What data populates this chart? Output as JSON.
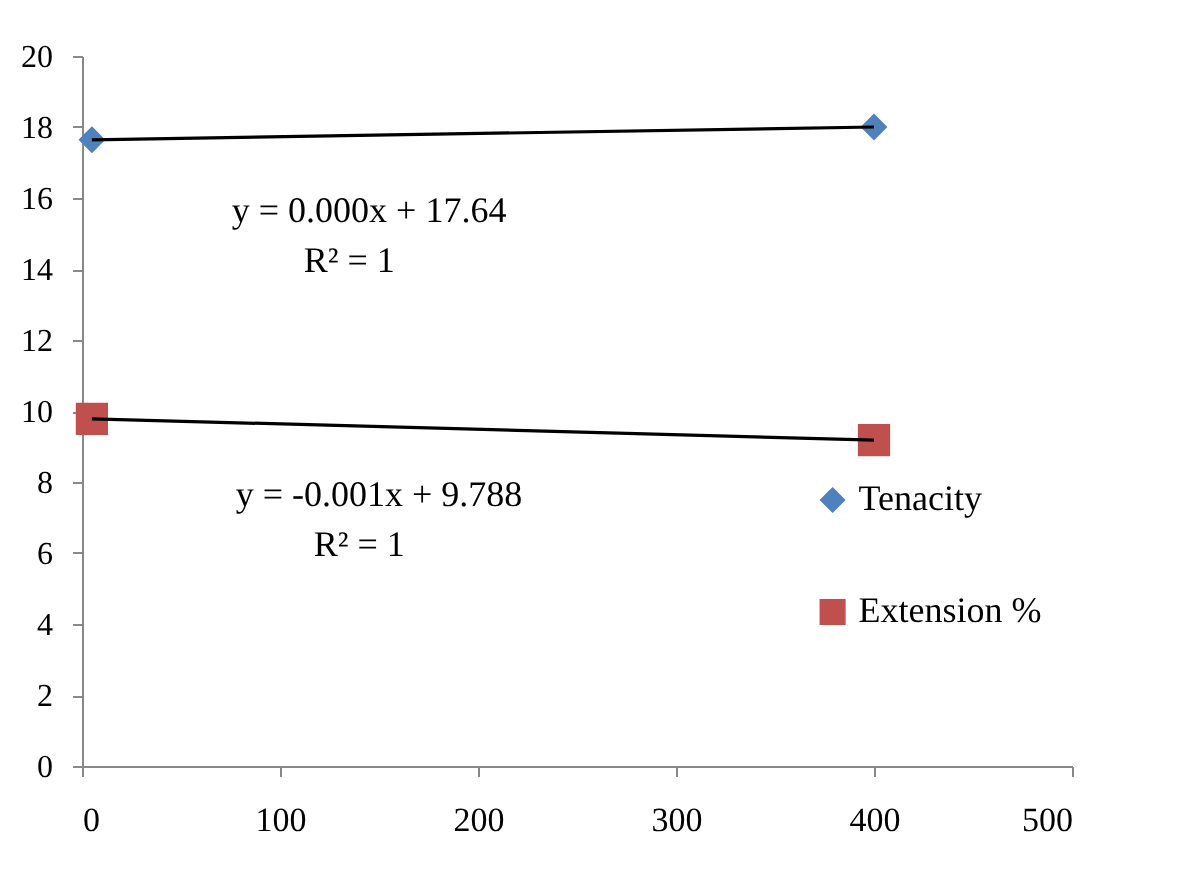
{
  "chart_data": {
    "type": "scatter",
    "x": [
      5,
      400
    ],
    "series": [
      {
        "name": "Tenacity",
        "color": "#4f81bd",
        "marker": "diamond",
        "values": [
          17.64,
          18.0
        ]
      },
      {
        "name": "Extension %",
        "color": "#c0504d",
        "marker": "square",
        "values": [
          9.78,
          9.18
        ]
      },
      {
        "type": "line",
        "color": "#000000",
        "values": [
          17.64,
          18.0
        ]
      },
      {
        "type": "line",
        "color": "#000000",
        "values": [
          9.78,
          9.18
        ]
      }
    ],
    "annotations": [
      "y = 0.000x + 17.64",
      "R² = 1",
      "y = -0.001x + 9.788",
      "R² = 1"
    ],
    "xlim": [
      0,
      500
    ],
    "xticks": [
      0,
      100,
      200,
      300,
      400,
      500
    ],
    "ylim": [
      0,
      20
    ],
    "yticks": [
      0,
      2,
      4,
      6,
      8,
      10,
      12,
      14,
      16,
      18,
      20
    ],
    "grid": false,
    "legend": "right",
    "line_style": "solid"
  }
}
